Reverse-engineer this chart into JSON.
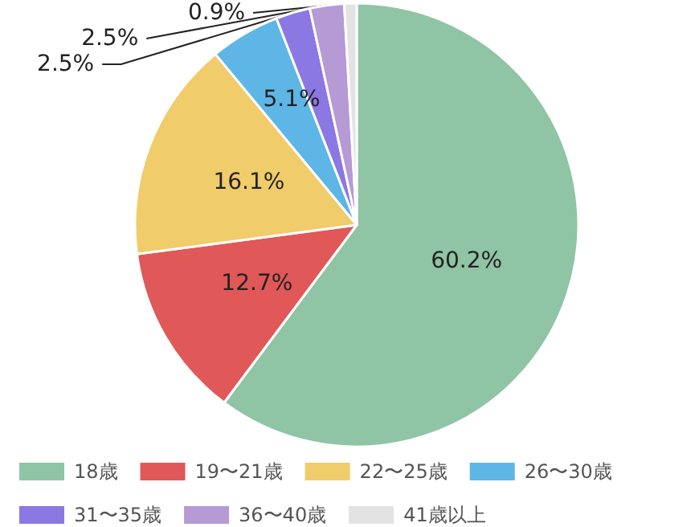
{
  "chart_data": {
    "type": "pie",
    "categories": [
      "18歳",
      "19〜21歳",
      "22〜25歳",
      "26〜30歳",
      "31〜35歳",
      "36〜40歳",
      "41歳以上"
    ],
    "values": [
      60.2,
      12.7,
      16.1,
      5.1,
      2.5,
      2.5,
      0.9
    ],
    "colors": [
      "#8fc4a5",
      "#e05858",
      "#f0cc6a",
      "#5db6e6",
      "#8b78e3",
      "#b59ad6",
      "#e3e3e3"
    ],
    "value_labels": [
      "60.2%",
      "12.7%",
      "16.1%",
      "5.1%",
      "2.5%",
      "2.5%",
      "0.9%"
    ],
    "legend": "bottom"
  }
}
